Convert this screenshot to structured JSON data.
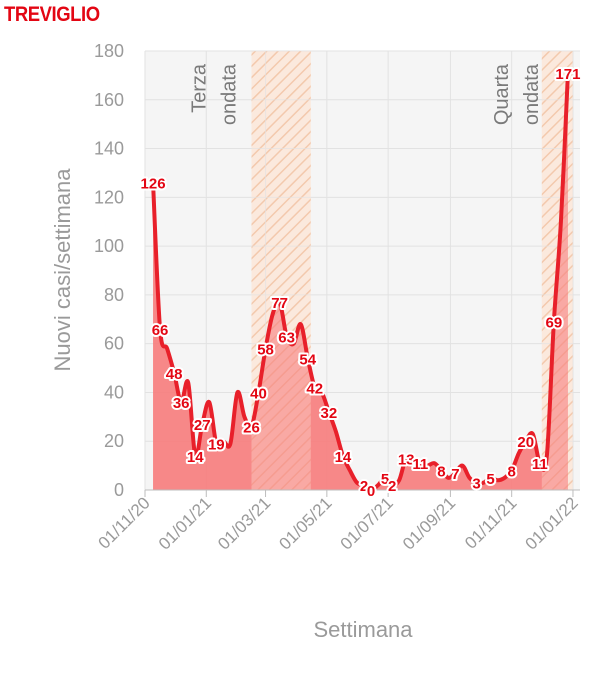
{
  "page_title": "TREVIGLIO",
  "colors": {
    "title": "#e30613",
    "line": "#e8202a",
    "area": "#f77c7c",
    "band": "#f6c7a8"
  },
  "chart_data": {
    "type": "area",
    "title": "TREVIGLIO",
    "xlabel": "Settimana",
    "ylabel": "Nuovi casi/settimana",
    "ylim": [
      0,
      180
    ],
    "yticks": [
      0,
      20,
      40,
      60,
      80,
      100,
      120,
      140,
      160,
      180
    ],
    "xticks": [
      "01/11/20",
      "01/01/21",
      "01/03/21",
      "01/05/21",
      "01/07/21",
      "01/09/21",
      "01/11/21",
      "01/01/22"
    ],
    "grid": true,
    "waves": [
      {
        "label": [
          "Terza",
          "ondata"
        ],
        "start": "2021-02-15",
        "end": "2021-04-15"
      },
      {
        "label": [
          "Quarta",
          "ondata"
        ],
        "start": "2021-12-01",
        "end": "2022-01-01"
      }
    ],
    "series": [
      {
        "x": [
          "2020-11-09",
          "2020-11-16",
          "2020-11-23",
          "2020-11-30",
          "2020-12-07",
          "2020-12-14",
          "2020-12-21",
          "2020-12-28",
          "2021-01-04",
          "2021-01-11",
          "2021-01-18",
          "2021-01-25",
          "2021-02-01",
          "2021-02-08",
          "2021-02-15",
          "2021-02-22",
          "2021-03-01",
          "2021-03-08",
          "2021-03-15",
          "2021-03-22",
          "2021-03-29",
          "2021-04-05",
          "2021-04-12",
          "2021-04-19",
          "2021-04-26",
          "2021-05-03",
          "2021-05-10",
          "2021-05-17",
          "2021-05-24",
          "2021-05-31",
          "2021-06-07",
          "2021-06-14",
          "2021-06-21",
          "2021-06-28",
          "2021-07-05",
          "2021-07-12",
          "2021-07-19",
          "2021-07-26",
          "2021-08-02",
          "2021-08-09",
          "2021-08-16",
          "2021-08-23",
          "2021-08-30",
          "2021-09-06",
          "2021-09-13",
          "2021-09-20",
          "2021-09-27",
          "2021-10-04",
          "2021-10-11",
          "2021-10-18",
          "2021-10-25",
          "2021-11-01",
          "2021-11-08",
          "2021-11-15",
          "2021-11-22",
          "2021-11-29",
          "2021-12-06",
          "2021-12-13",
          "2021-12-20",
          "2021-12-27"
        ],
        "values": [
          126,
          66,
          58,
          48,
          36,
          44,
          14,
          27,
          36,
          19,
          20,
          19,
          40,
          30,
          26,
          40,
          58,
          72,
          77,
          63,
          60,
          68,
          54,
          42,
          40,
          32,
          24,
          14,
          8,
          3,
          2,
          0,
          2,
          5,
          2,
          4,
          13,
          11,
          11,
          10,
          11,
          8,
          5,
          7,
          10,
          5,
          3,
          3,
          5,
          4,
          5,
          8,
          15,
          20,
          23,
          11,
          14,
          69,
          110,
          171
        ],
        "labels": [
          [
            0,
            "126"
          ],
          [
            1,
            "66"
          ],
          [
            3,
            "48"
          ],
          [
            4,
            "36"
          ],
          [
            6,
            "14"
          ],
          [
            7,
            "27"
          ],
          [
            9,
            "19"
          ],
          [
            14,
            "26"
          ],
          [
            15,
            "40"
          ],
          [
            16,
            "58"
          ],
          [
            18,
            "77"
          ],
          [
            19,
            "63"
          ],
          [
            22,
            "54"
          ],
          [
            23,
            "42"
          ],
          [
            25,
            "32"
          ],
          [
            27,
            "14"
          ],
          [
            30,
            "2"
          ],
          [
            31,
            "0"
          ],
          [
            33,
            "5"
          ],
          [
            34,
            "2"
          ],
          [
            36,
            "13"
          ],
          [
            38,
            "11"
          ],
          [
            41,
            "8"
          ],
          [
            43,
            "7"
          ],
          [
            46,
            "3"
          ],
          [
            48,
            "5"
          ],
          [
            51,
            "8"
          ],
          [
            53,
            "20"
          ],
          [
            55,
            "11"
          ],
          [
            57,
            "69"
          ],
          [
            59,
            "171"
          ]
        ]
      }
    ]
  }
}
